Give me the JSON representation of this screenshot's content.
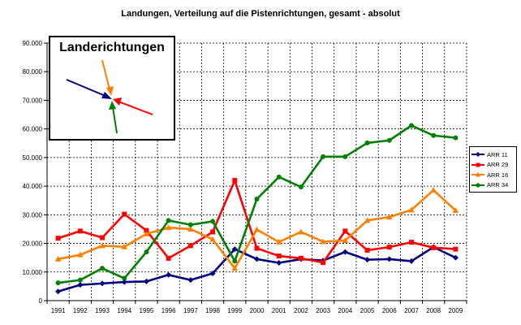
{
  "chart_data": {
    "type": "line",
    "title": "Landungen, Verteilung auf die Pistenrichtungen, gesamt - absolut",
    "categories": [
      "1991",
      "1992",
      "1993",
      "1994",
      "1995",
      "1996",
      "1997",
      "1998",
      "1999",
      "2000",
      "2001",
      "2002",
      "2003",
      "2004",
      "2005",
      "2006",
      "2007",
      "2008",
      "2009"
    ],
    "y_ticks": [
      "0",
      "10.000",
      "20.000",
      "30.000",
      "40.000",
      "50.000",
      "60.000",
      "70.000",
      "80.000",
      "90.000"
    ],
    "ylim": [
      0,
      90000
    ],
    "grid": true,
    "legend_position": "right",
    "series": [
      {
        "name": "ARR 11",
        "color": "#000080",
        "values": [
          3200,
          5500,
          6000,
          6500,
          6700,
          9000,
          7200,
          9500,
          18000,
          14500,
          13200,
          14500,
          14000,
          17000,
          14300,
          14500,
          13800,
          18700,
          15000
        ]
      },
      {
        "name": "ARR 29",
        "color": "#ff0000",
        "values": [
          21800,
          24300,
          22000,
          30200,
          24500,
          14800,
          19200,
          24000,
          42000,
          18300,
          15600,
          14800,
          13300,
          24300,
          17600,
          18700,
          20400,
          18500,
          18000
        ]
      },
      {
        "name": "ARR 16",
        "color": "#ff8000",
        "values": [
          14500,
          16000,
          19200,
          18800,
          23300,
          25500,
          25000,
          21400,
          11300,
          24800,
          20500,
          24000,
          20600,
          21000,
          28000,
          29200,
          31700,
          38600,
          31500
        ]
      },
      {
        "name": "ARR 34",
        "color": "#008000",
        "values": [
          6200,
          7200,
          11300,
          7800,
          17000,
          28000,
          26500,
          27700,
          13800,
          35500,
          43200,
          39700,
          50300,
          50300,
          55100,
          56000,
          61200,
          57700,
          56900
        ]
      }
    ]
  },
  "inset": {
    "title": "Landerichtungen",
    "arrows": [
      {
        "name": "ARR 11",
        "color": "#000080"
      },
      {
        "name": "ARR 29",
        "color": "#ff0000"
      },
      {
        "name": "ARR 16",
        "color": "#ff8000"
      },
      {
        "name": "ARR 34",
        "color": "#008000"
      }
    ]
  }
}
